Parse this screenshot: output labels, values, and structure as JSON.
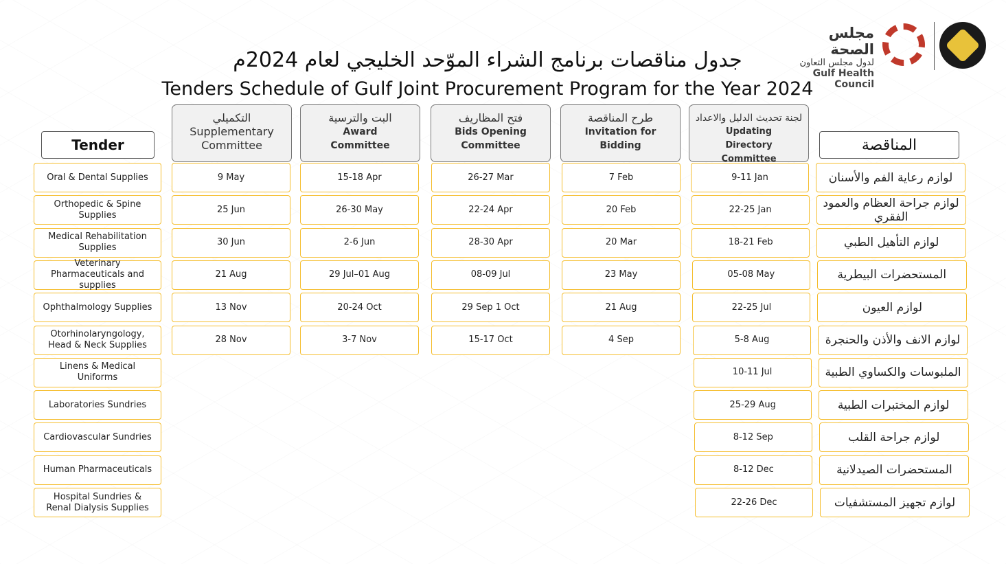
{
  "title_ar": "جدول مناقصات برنامج الشراء الموّحد الخليجي لعام 2024م",
  "title_en": "Tenders Schedule of Gulf Joint Procurement Program for the Year 2024",
  "logo": {
    "ar1": "مجلس الصحة",
    "ar2": "لدول مجلس التعاون",
    "en": "Gulf Health Council"
  },
  "headers": {
    "tender": "Tender",
    "tender_ar": "المناقصة",
    "supplementary": {
      "ar": "التكميلي",
      "en": "Supplementary Committee"
    },
    "award": {
      "ar": "البت والترسية",
      "en": "Award Committee"
    },
    "bids": {
      "ar": "فتح المظاريف",
      "en": "Bids Opening Committee"
    },
    "invitation": {
      "ar": "طرح المناقصة",
      "en": "Invitation for Bidding"
    },
    "updating": {
      "ar": "لجنة تحديث الدليل والاعداد",
      "en": "Updating Directory Committee"
    }
  },
  "tenders": [
    "Oral & Dental Supplies",
    "Orthopedic & Spine Supplies",
    "Medical Rehabilitation Supplies",
    "Veterinary Pharmaceuticals and supplies",
    "Ophthalmology Supplies",
    "Otorhinolaryngology, Head & Neck Supplies",
    "Linens & Medical Uniforms",
    "Laboratories Sundries",
    "Cardiovascular Sundries",
    "Human Pharmaceuticals",
    "Hospital Sundries & Renal Dialysis Supplies"
  ],
  "tenders_ar": [
    "لوازم رعاية الفم والأسنان",
    "لوازم جراحة العظام والعمود الفقري",
    "لوازم التأهيل الطبي",
    "المستحضرات البيطرية",
    "لوازم العيون",
    "لوازم الانف والأذن والحنجرة",
    "الملبوسات والكساوي الطبية",
    "لوازم المختبرات الطبية",
    "لوازم جراحة القلب",
    "المستحضرات الصيدلانية",
    "لوازم تجهيز المستشفيات"
  ],
  "supplementary": [
    "9 May",
    "25 Jun",
    "30 Jun",
    "21 Aug",
    "13 Nov",
    "28 Nov"
  ],
  "award": [
    "15-18 Apr",
    "26-30 May",
    "2-6 Jun",
    "29 Jul–01 Aug",
    "20-24 Oct",
    "3-7 Nov"
  ],
  "bids": [
    "26-27 Mar",
    "22-24 Apr",
    "28-30 Apr",
    "08-09 Jul",
    "29 Sep 1 Oct",
    "15-17 Oct"
  ],
  "invitation": [
    "7 Feb",
    "20 Feb",
    "20 Mar",
    "23 May",
    "21 Aug",
    "4 Sep"
  ],
  "updating": [
    "9-11 Jan",
    "22-25 Jan",
    "18-21 Feb",
    "05-08 May",
    "22-25 Jul",
    "5-8 Aug",
    "10-11 Jul",
    "25-29 Aug",
    "8-12 Sep",
    "8-12 Dec",
    "22-26 Dec"
  ],
  "colors": {
    "cell_border": "#f5bd2c",
    "header_bg": "#f1f1f1"
  }
}
